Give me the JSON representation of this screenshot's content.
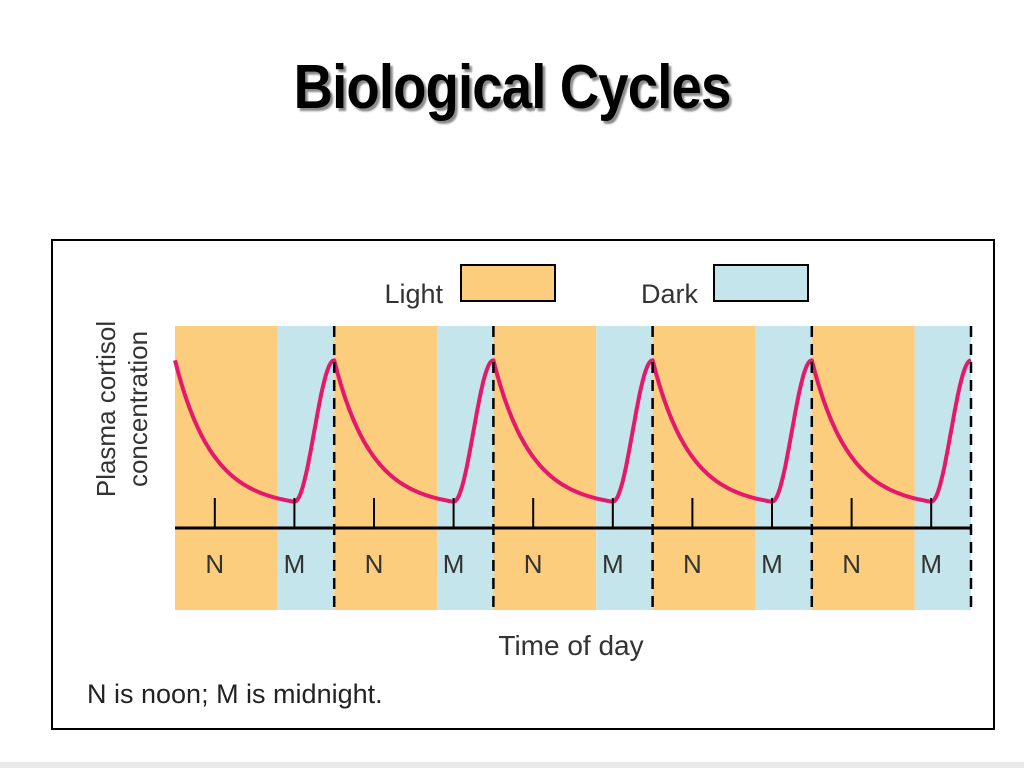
{
  "slide": {
    "title": "Biological Cycles"
  },
  "figure": {
    "note": "N is noon; M is midnight."
  },
  "chart_data": {
    "type": "line",
    "title": "",
    "xlabel": "Time of day",
    "ylabel": "Plasma cortisol concentration",
    "ylabel_lines": [
      "Plasma cortisol",
      "concentration"
    ],
    "x_unit": "hours from first noon",
    "xlim": [
      -6,
      114
    ],
    "ylim": [
      0,
      1
    ],
    "day_markers": [
      {
        "label": "N",
        "x": 0
      },
      {
        "label": "M",
        "x": 12
      },
      {
        "label": "N",
        "x": 24
      },
      {
        "label": "M",
        "x": 36
      },
      {
        "label": "N",
        "x": 48
      },
      {
        "label": "M",
        "x": 60
      },
      {
        "label": "N",
        "x": 72
      },
      {
        "label": "M",
        "x": 84
      },
      {
        "label": "N",
        "x": 96
      },
      {
        "label": "M",
        "x": 108
      }
    ],
    "dashed_lines_x": [
      18,
      42,
      66,
      90,
      114
    ],
    "light_dark_periods": [
      {
        "state": "Light",
        "start": -6,
        "end": 9.5
      },
      {
        "state": "Dark",
        "start": 9.5,
        "end": 18
      },
      {
        "state": "Light",
        "start": 18,
        "end": 33.5
      },
      {
        "state": "Dark",
        "start": 33.5,
        "end": 42
      },
      {
        "state": "Light",
        "start": 42,
        "end": 57.5
      },
      {
        "state": "Dark",
        "start": 57.5,
        "end": 66
      },
      {
        "state": "Light",
        "start": 66,
        "end": 81.5
      },
      {
        "state": "Dark",
        "start": 81.5,
        "end": 90
      },
      {
        "state": "Light",
        "start": 90,
        "end": 105.5
      },
      {
        "state": "Dark",
        "start": 105.5,
        "end": 114
      }
    ],
    "legend": [
      {
        "label": "Light",
        "color": "#fccd7d"
      },
      {
        "label": "Dark",
        "color": "#c5e5ec"
      }
    ],
    "legend_position": "top-center",
    "series": [
      {
        "color": "#e5196b",
        "peaks_x": [
          18,
          42,
          66,
          90,
          114
        ],
        "troughs_x": [
          12,
          36,
          60,
          84,
          108
        ],
        "peak_value": 0.83,
        "trough_value": 0.13,
        "start": {
          "x": -6,
          "y": 0.83
        }
      }
    ],
    "grid": false
  }
}
